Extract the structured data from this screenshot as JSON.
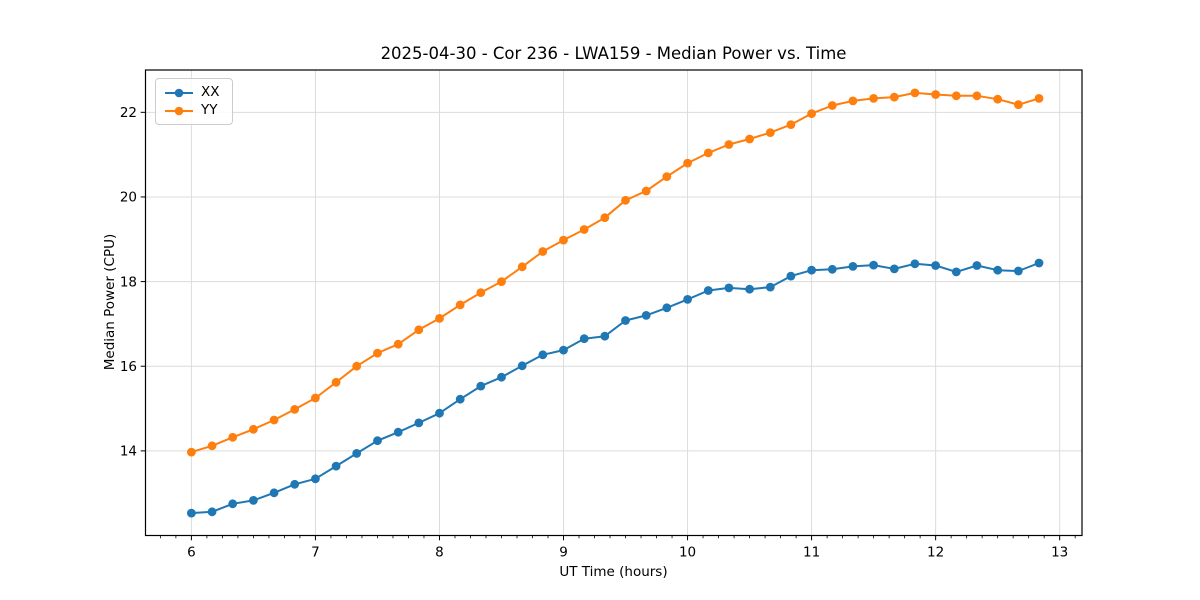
{
  "chart_data": {
    "type": "line",
    "title": "2025-04-30 - Cor 236 - LWA159 - Median Power vs. Time",
    "xlabel": "UT Time (hours)",
    "ylabel": "Median Power (CPU)",
    "xlim": [
      5.63,
      13.18
    ],
    "ylim": [
      12.0,
      23.0
    ],
    "x_major_ticks": [
      6,
      7,
      8,
      9,
      10,
      11,
      12,
      13
    ],
    "x_minor_tick_step": 0.125,
    "y_major_ticks": [
      14,
      16,
      18,
      20,
      22
    ],
    "grid": true,
    "legend_position": "upper-left",
    "marker": "circle",
    "x": [
      6.0,
      6.167,
      6.333,
      6.5,
      6.667,
      6.833,
      7.0,
      7.167,
      7.333,
      7.5,
      7.667,
      7.833,
      8.0,
      8.167,
      8.333,
      8.5,
      8.667,
      8.833,
      9.0,
      9.167,
      9.333,
      9.5,
      9.667,
      9.833,
      10.0,
      10.167,
      10.333,
      10.5,
      10.667,
      10.833,
      11.0,
      11.167,
      11.333,
      11.5,
      11.667,
      11.833,
      12.0,
      12.167,
      12.333,
      12.5,
      12.667,
      12.833
    ],
    "series": [
      {
        "name": "XX",
        "color": "#1f77b4",
        "values": [
          12.53,
          12.56,
          12.75,
          12.83,
          13.01,
          13.21,
          13.34,
          13.64,
          13.94,
          14.24,
          14.44,
          14.66,
          14.89,
          15.22,
          15.53,
          15.74,
          16.01,
          16.27,
          16.38,
          16.65,
          16.71,
          17.08,
          17.2,
          17.38,
          17.58,
          17.79,
          17.85,
          17.82,
          17.87,
          18.13,
          18.27,
          18.29,
          18.36,
          18.39,
          18.3,
          18.42,
          18.38,
          18.23,
          18.38,
          18.27,
          18.25,
          18.44
        ]
      },
      {
        "name": "YY",
        "color": "#ff7f0e",
        "values": [
          13.97,
          14.12,
          14.32,
          14.51,
          14.73,
          14.98,
          15.25,
          15.62,
          16.0,
          16.31,
          16.52,
          16.86,
          17.13,
          17.45,
          17.74,
          18.0,
          18.35,
          18.71,
          18.98,
          19.23,
          19.51,
          19.92,
          20.14,
          20.48,
          20.8,
          21.04,
          21.24,
          21.37,
          21.52,
          21.71,
          21.97,
          22.16,
          22.27,
          22.33,
          22.36,
          22.46,
          22.42,
          22.39,
          22.39,
          22.31,
          22.18,
          22.33
        ]
      }
    ]
  },
  "colors": {
    "grid": "#dcdcdc",
    "spine": "#000000",
    "tick": "#000000",
    "text": "#000000",
    "background": "#ffffff"
  }
}
